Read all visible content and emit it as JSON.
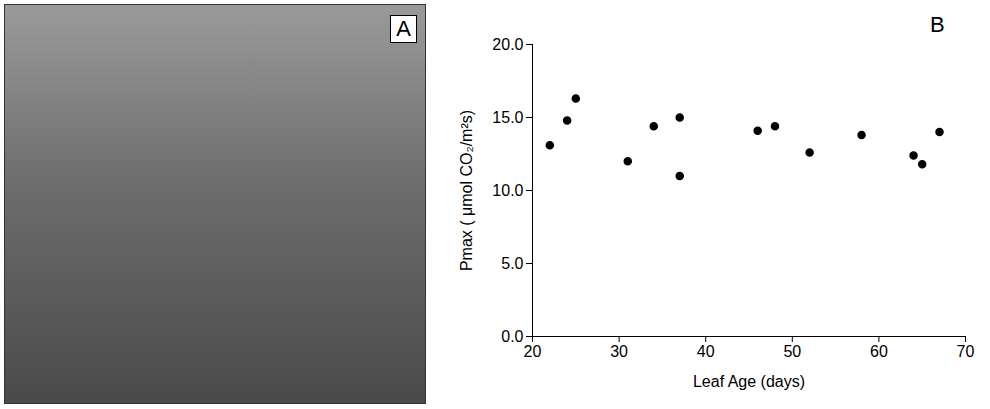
{
  "photo": {
    "label": "A"
  },
  "chart_data": {
    "type": "scatter",
    "panel_label": "B",
    "x_label": "Leaf Age (days)",
    "y_label": "Pmax ( μmol CO₂/m²s)",
    "x": [
      22,
      24,
      25,
      31,
      34,
      37,
      37,
      46,
      48,
      52,
      58,
      64,
      65,
      67
    ],
    "values": [
      13.1,
      14.8,
      16.3,
      12.0,
      14.4,
      15.0,
      11.0,
      14.1,
      14.4,
      12.6,
      13.8,
      12.4,
      11.8,
      14.0
    ],
    "color": "#000000",
    "marker": "circle",
    "xlim": [
      20,
      70
    ],
    "xticks": [
      20,
      30,
      40,
      50,
      60,
      70
    ],
    "ylim": [
      0,
      20
    ],
    "yticks": [
      {
        "value": 0,
        "label": "0.0"
      },
      {
        "value": 5,
        "label": "5.0"
      },
      {
        "value": 10,
        "label": "10.0"
      },
      {
        "value": 15,
        "label": "15.0"
      },
      {
        "value": 20,
        "label": "20.0"
      }
    ]
  }
}
